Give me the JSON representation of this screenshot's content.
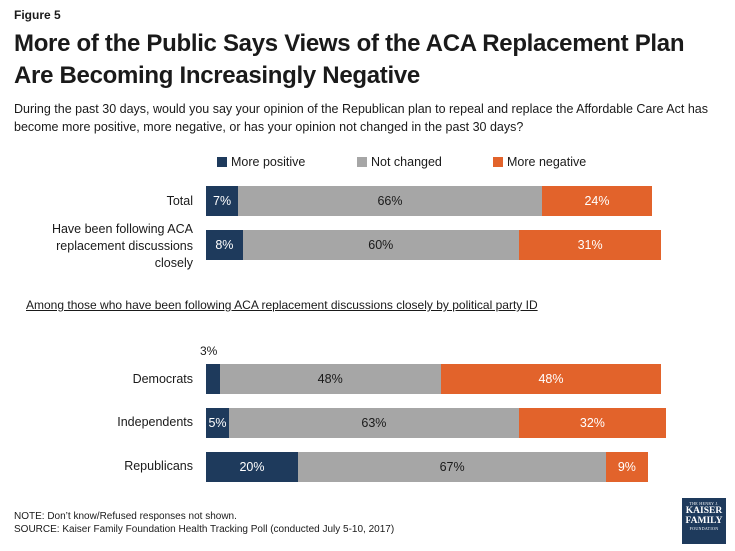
{
  "figure_label": "Figure 5",
  "title": "More of the Public Says Views of the ACA Replacement Plan Are Becoming Increasingly Negative",
  "subtitle": "During the past 30 days, would you say your opinion of the Republican plan to repeal and replace the Affordable Care Act has become more positive, more negative, or has your opinion not changed in the past 30 days?",
  "section_note": "Among those who have been following ACA replacement discussions closely by political party ID",
  "notes": {
    "note": "NOTE: Don’t know/Refused responses not shown.",
    "source": "SOURCE: Kaiser Family Foundation Health Tracking Poll (conducted July 5-10, 2017)"
  },
  "logo": {
    "line1": "THE HENRY J.",
    "line2": "KAISER",
    "line3": "FAMILY",
    "line4": "FOUNDATION"
  },
  "colors": {
    "more_positive": "#1e3a5c",
    "not_changed": "#a6a6a6",
    "more_negative": "#e2632b"
  },
  "chart_data": {
    "type": "bar",
    "orientation": "horizontal",
    "stacked": true,
    "legend_position": "top",
    "series_names": [
      "More positive",
      "Not changed",
      "More negative"
    ],
    "rows": [
      {
        "label": "Total",
        "values": [
          7,
          66,
          24
        ],
        "labels": [
          "7%",
          "66%",
          "24%"
        ]
      },
      {
        "label": "Have been following ACA replacement discussions closely",
        "values": [
          8,
          60,
          31
        ],
        "labels": [
          "8%",
          "60%",
          "31%"
        ]
      },
      {
        "label": "Democrats",
        "values": [
          3,
          48,
          48
        ],
        "labels": [
          "3%",
          "48%",
          "48%"
        ]
      },
      {
        "label": "Independents",
        "values": [
          5,
          63,
          32
        ],
        "labels": [
          "5%",
          "63%",
          "32%"
        ]
      },
      {
        "label": "Republicans",
        "values": [
          20,
          67,
          9
        ],
        "labels": [
          "20%",
          "67%",
          "9%"
        ]
      }
    ]
  }
}
